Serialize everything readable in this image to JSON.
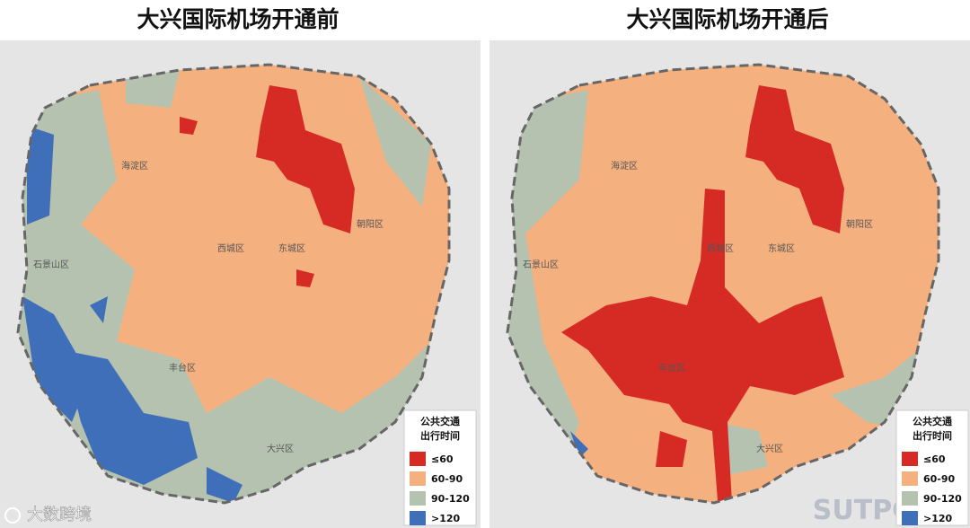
{
  "panels": [
    {
      "title": "大兴国际机场开通前",
      "districts": [
        "海淀区",
        "西城区",
        "东城区",
        "朝阳区",
        "石景山区",
        "丰台区",
        "大兴区"
      ],
      "legend": {
        "title": [
          "公共交通",
          "出行时间"
        ],
        "items": [
          {
            "label": "≤60",
            "color": "#d62a24"
          },
          {
            "label": "60-90",
            "color": "#f5b07f"
          },
          {
            "label": "90-120",
            "color": "#b5c2b0"
          },
          {
            "label": ">120",
            "color": "#3f6fb8"
          }
        ]
      }
    },
    {
      "title": "大兴国际机场开通后",
      "districts": [
        "海淀区",
        "西城区",
        "东城区",
        "朝阳区",
        "石景山区",
        "丰台区",
        "大兴区"
      ],
      "legend": {
        "title": [
          "公共交通",
          "出行时间"
        ],
        "items": [
          {
            "label": "≤60",
            "color": "#d62a24"
          },
          {
            "label": "60-90",
            "color": "#f5b07f"
          },
          {
            "label": "90-120",
            "color": "#b5c2b0"
          },
          {
            "label": ">120",
            "color": "#3f6fb8"
          }
        ]
      }
    }
  ],
  "watermark": "大数跨境",
  "logo": "SUTPC"
}
